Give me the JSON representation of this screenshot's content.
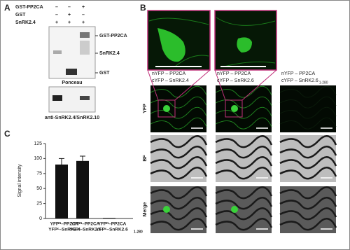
{
  "panel_a": {
    "label": "A",
    "rows": [
      {
        "name": "GST-PP2CA",
        "signs": [
          "–",
          "–",
          "+"
        ]
      },
      {
        "name": "GST",
        "signs": [
          "–",
          "+",
          "–"
        ]
      },
      {
        "name": "SnRK2.4",
        "signs": [
          "+",
          "+",
          "+"
        ]
      }
    ],
    "band_labels": [
      "GST-PP2CA",
      "SnRK2.4",
      "GST"
    ],
    "stain": "Ponceau",
    "blot": "anti-SnRK2.4/SnRK2.10"
  },
  "panel_b": {
    "label": "B",
    "columns": [
      {
        "n": "nYFP –  PP2CA",
        "c": "cYFP –  SnRK2.4"
      },
      {
        "n": "nYFP –  PP2CA",
        "c": "cYFP –  SnRK2.6"
      },
      {
        "n": "nYFP –  PP2CA",
        "c": "cYFP –  SnRK2.6",
        "sub": "1-280"
      }
    ],
    "rows": [
      "YFP",
      "BF",
      "Merge"
    ]
  },
  "chart_data": {
    "type": "bar",
    "label": "C",
    "ylabel": "Signal intensity",
    "categories": [
      [
        "YFPᴺ–PP2CA",
        "YFPᶜ–SnRK2.4"
      ],
      [
        "YFPᴺ–PP2CA",
        "YFPᶜ–SnRK2.6"
      ],
      [
        "YFPᴺ–PP2CA",
        "YFPᶜ–SnRK2.6",
        "1-280"
      ]
    ],
    "values": [
      90,
      96,
      1
    ],
    "errors": [
      10,
      8,
      null
    ],
    "color": "#111111",
    "ylim": [
      0,
      125
    ],
    "yticks": [
      0,
      25,
      50,
      75,
      100,
      125
    ]
  }
}
